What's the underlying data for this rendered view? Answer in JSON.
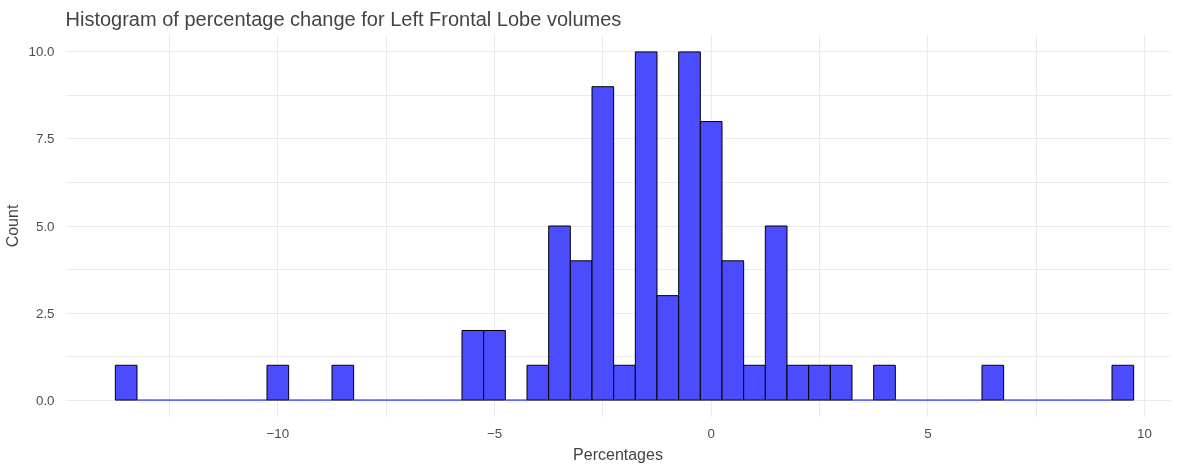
{
  "chart_data": {
    "type": "histogram",
    "title": "Histogram of percentage change for Left Frontal Lobe volumes",
    "xlabel": "Percentages",
    "ylabel": "Count",
    "bins": [
      -13.75,
      -13.25,
      -12.75,
      -12.25,
      -11.75,
      -11.25,
      -10.75,
      -10.25,
      -9.75,
      -9.25,
      -8.75,
      -8.25,
      -7.75,
      -7.25,
      -6.75,
      -6.25,
      -5.75,
      -5.25,
      -4.75,
      -4.25,
      -3.75,
      -3.25,
      -2.75,
      -2.25,
      -1.75,
      -1.25,
      -0.75,
      -0.25,
      0.25,
      0.75,
      1.25,
      1.75,
      2.25,
      2.75,
      3.25,
      3.75,
      4.25,
      4.75,
      5.25,
      5.75,
      6.25,
      6.75,
      7.25,
      7.75,
      8.25,
      8.75,
      9.25,
      9.75
    ],
    "values": [
      1,
      0,
      0,
      0,
      0,
      0,
      0,
      1,
      0,
      0,
      1,
      0,
      0,
      0,
      0,
      0,
      2,
      2,
      0,
      1,
      5,
      4,
      9,
      1,
      10,
      3,
      10,
      8,
      4,
      1,
      5,
      1,
      1,
      1,
      0,
      1,
      0,
      0,
      0,
      0,
      1,
      0,
      0,
      0,
      0,
      0,
      1
    ],
    "color": "#4c4cff",
    "xlim": [
      -14.9,
      10.6
    ],
    "xticks": [
      {
        "value": -12.5,
        "label": null
      },
      -10,
      {
        "value": -7.5,
        "label": null
      },
      -5,
      {
        "value": -2.5,
        "label": null
      },
      0,
      {
        "value": 2.5,
        "label": null
      },
      5,
      {
        "value": 7.5,
        "label": null
      },
      10
    ],
    "ylim": [
      -0.5,
      10.5
    ],
    "yticks": [
      {
        "value": 0,
        "label": "0.0"
      },
      {
        "value": 1.25,
        "label": null
      },
      {
        "value": 2.5,
        "label": "2.5"
      },
      {
        "value": 3.75,
        "label": null
      },
      {
        "value": 5,
        "label": "5.0"
      },
      {
        "value": 6.25,
        "label": null
      },
      {
        "value": 7.5,
        "label": "7.5"
      },
      {
        "value": 8.75,
        "label": null
      },
      {
        "value": 10,
        "label": "10.0"
      }
    ],
    "grid": true
  }
}
